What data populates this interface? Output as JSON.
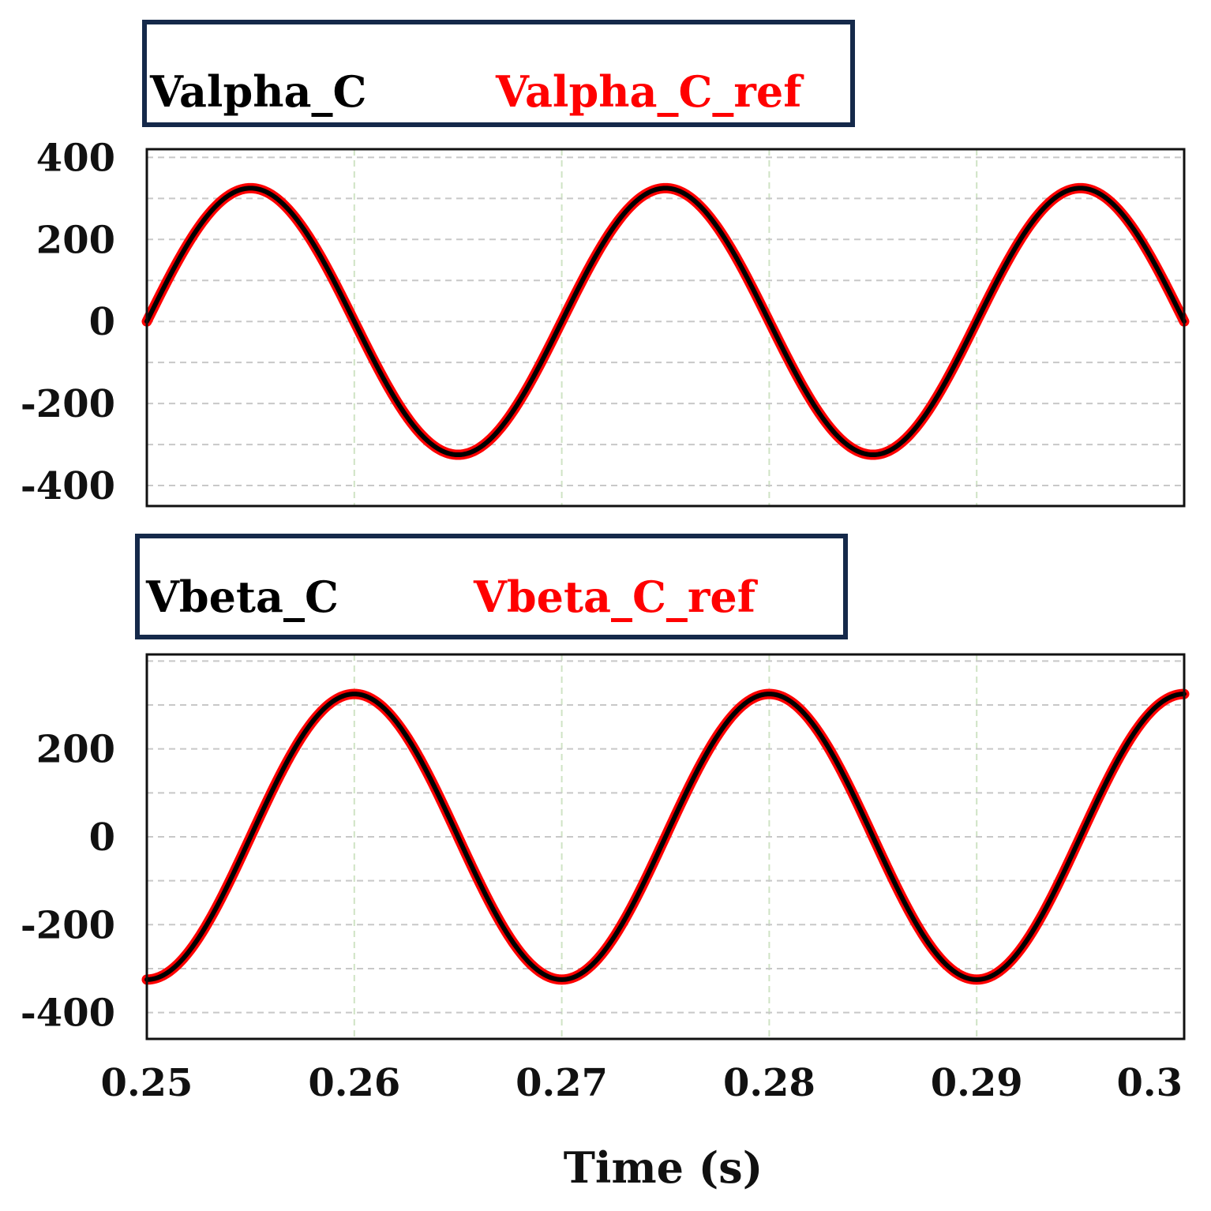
{
  "colors": {
    "measured": "#000000",
    "reference": "#ff0000",
    "legend_border": "#15294a",
    "grid": "#c8c8c8",
    "vgrid": "#cfe3c4"
  },
  "chart_data": [
    {
      "type": "line",
      "legend": [
        "Valpha_C",
        "Valpha_C_ref"
      ],
      "xlim": [
        0.25,
        0.3
      ],
      "ylim": [
        -450,
        420
      ],
      "yticks": [
        400,
        200,
        0,
        -200,
        -400
      ],
      "ytick_labels": [
        "400",
        "200",
        "0",
        "-200",
        "-400"
      ],
      "series": [
        {
          "name": "Valpha_C",
          "amplitude": 325,
          "frequency_hz": 50,
          "phase_deg": 180,
          "color": "#000000"
        },
        {
          "name": "Valpha_C_ref",
          "amplitude": 325,
          "frequency_hz": 50,
          "phase_deg": 180,
          "color": "#ff0000"
        }
      ]
    },
    {
      "type": "line",
      "legend": [
        "Vbeta_C",
        "Vbeta_C_ref"
      ],
      "xlim": [
        0.25,
        0.3
      ],
      "ylim": [
        -460,
        415
      ],
      "yticks": [
        200,
        0,
        -200,
        -400
      ],
      "ytick_labels": [
        "200",
        "0",
        "-200",
        "-400"
      ],
      "series": [
        {
          "name": "Vbeta_C",
          "amplitude": 325,
          "frequency_hz": 50,
          "phase_deg": 90,
          "color": "#000000"
        },
        {
          "name": "Vbeta_C_ref",
          "amplitude": 325,
          "frequency_hz": 50,
          "phase_deg": 90,
          "color": "#ff0000"
        }
      ]
    }
  ],
  "x_axis": {
    "ticks": [
      0.25,
      0.26,
      0.27,
      0.28,
      0.29,
      0.3
    ],
    "tick_labels": [
      "0.25",
      "0.26",
      "0.27",
      "0.28",
      "0.29",
      "0.3"
    ],
    "label": "Time (s)"
  }
}
